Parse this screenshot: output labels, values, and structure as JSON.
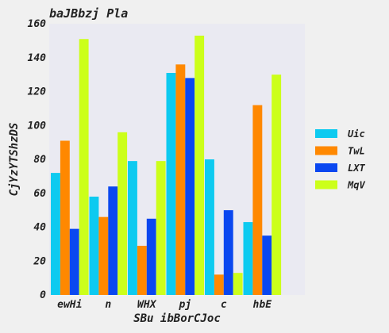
{
  "chart_data": {
    "type": "bar",
    "title": "baJBbzj Pla",
    "xlabel": "SBu  ibBorCJoc",
    "ylabel": "CjYzYTShzDS",
    "categories": [
      "ewHi",
      "n",
      "WHX",
      "pj",
      "c",
      "hbE"
    ],
    "ylim": [
      0,
      160
    ],
    "yticks": [
      0,
      20,
      40,
      60,
      80,
      100,
      120,
      140,
      160
    ],
    "grid": false,
    "legend_position": "right",
    "series": [
      {
        "name": "Uic",
        "color": "#0dcaf0",
        "values": [
          72,
          58,
          79,
          131,
          80,
          43
        ]
      },
      {
        "name": "TwL",
        "color": "#ff8800",
        "values": [
          91,
          46,
          29,
          136,
          12,
          112
        ]
      },
      {
        "name": "LXT",
        "color": "#0a47f0",
        "values": [
          39,
          64,
          45,
          128,
          50,
          35
        ]
      },
      {
        "name": "MqV",
        "color": "#ccff1a",
        "values": [
          151,
          96,
          79,
          153,
          13,
          130
        ]
      }
    ]
  }
}
